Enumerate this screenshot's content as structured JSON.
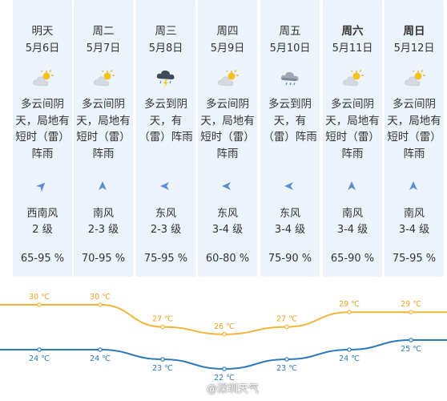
{
  "days": [
    {
      "day": "明天",
      "bold": false,
      "date": "5月6日",
      "icon": "partly-cloudy-icon",
      "desc": [
        "多云间阴",
        "天，局地有",
        "短时（雷）",
        "阵雨"
      ],
      "wind_icon": "wind-arrow-northeast-icon",
      "wind_dir": "西南风",
      "wind_level": "2 级",
      "humidity": "65-95 %",
      "high_label": "30 ℃",
      "low_label": "24 ℃",
      "high": 30,
      "low": 24
    },
    {
      "day": "周二",
      "bold": false,
      "date": "5月7日",
      "icon": "partly-cloudy-icon",
      "desc": [
        "多云间阴",
        "天，局地有",
        "短时（雷）",
        "阵雨"
      ],
      "wind_icon": "wind-arrow-north-icon",
      "wind_dir": "南风",
      "wind_level": "2-3 级",
      "humidity": "70-95 %",
      "high_label": "30 ℃",
      "low_label": "24 ℃",
      "high": 30,
      "low": 24
    },
    {
      "day": "周三",
      "bold": false,
      "date": "5月8日",
      "icon": "thunderstorm-icon",
      "desc": [
        "多云到阴",
        "天，有",
        "（雷）阵雨"
      ],
      "wind_icon": "wind-arrow-west-icon",
      "wind_dir": "东风",
      "wind_level": "2-3 级",
      "humidity": "75-95 %",
      "high_label": "27 ℃",
      "low_label": "23 ℃",
      "high": 27,
      "low": 23
    },
    {
      "day": "周四",
      "bold": false,
      "date": "5月9日",
      "icon": "partly-cloudy-icon",
      "desc": [
        "多云间阴",
        "天，局地有",
        "短时（雷）",
        "阵雨"
      ],
      "wind_icon": "wind-arrow-west-icon",
      "wind_dir": "东风",
      "wind_level": "3-4 级",
      "humidity": "60-80 %",
      "high_label": "26 ℃",
      "low_label": "22 ℃",
      "high": 26,
      "low": 22
    },
    {
      "day": "周五",
      "bold": false,
      "date": "5月10日",
      "icon": "cloudy-rain-icon",
      "desc": [
        "多云到阴",
        "天，有",
        "（雷）阵雨"
      ],
      "wind_icon": "wind-arrow-west-icon",
      "wind_dir": "东风",
      "wind_level": "3-4 级",
      "humidity": "75-90 %",
      "high_label": "27 ℃",
      "low_label": "23 ℃",
      "high": 27,
      "low": 23
    },
    {
      "day": "周六",
      "bold": true,
      "date": "5月11日",
      "icon": "partly-cloudy-icon",
      "desc": [
        "多云间阴",
        "天，局地有",
        "短时（雷）",
        "阵雨"
      ],
      "wind_icon": "wind-arrow-north-icon",
      "wind_dir": "南风",
      "wind_level": "3-4 级",
      "humidity": "65-90 %",
      "high_label": "29 ℃",
      "low_label": "24 ℃",
      "high": 29,
      "low": 24
    },
    {
      "day": "周日",
      "bold": true,
      "date": "5月12日",
      "icon": "partly-cloudy-icon",
      "desc": [
        "多云间阴",
        "天，局地有",
        "短时（雷）",
        "阵雨"
      ],
      "wind_icon": "wind-arrow-north-icon",
      "wind_dir": "南风",
      "wind_level": "3-4 级",
      "humidity": "75-95 %",
      "high_label": "29 ℃",
      "low_label": "25 ℃",
      "high": 29,
      "low": 25
    }
  ],
  "colors": {
    "high_line": "#f0b53a",
    "low_line": "#2f7ab8",
    "column_bg": "#edf3fa",
    "label": "#f0a020",
    "arrow": "#5b8fd0"
  },
  "watermark": "@深圳天气"
}
